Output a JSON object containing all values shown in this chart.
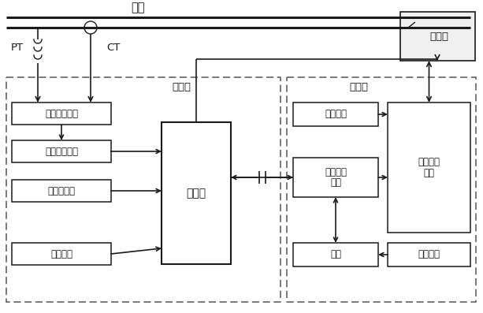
{
  "bg": "#ffffff",
  "lc": "#1a1a1a",
  "fs": 9.5,
  "fsm": 8.5,
  "title": "电网",
  "PT": "PT",
  "CT": "CT",
  "breaker": "断路器",
  "ctrl_board": "控制板",
  "drv_board": "驱动板",
  "sig_acq": "信号采集电路",
  "sig_cond": "信号调理电路",
  "open_close": "分合闸指令",
  "display": "显示电路",
  "controller": "控制器",
  "drive_ckt": "驱动电路",
  "charge_ctrl_lines": [
    "充电控制",
    "电路"
  ],
  "capacitor": "电容",
  "coil_ctrl_lines": [
    "线圈控制",
    "电路"
  ],
  "power_ckt": "电源电路",
  "figw": 6.13,
  "figh": 3.97,
  "dpi": 100
}
